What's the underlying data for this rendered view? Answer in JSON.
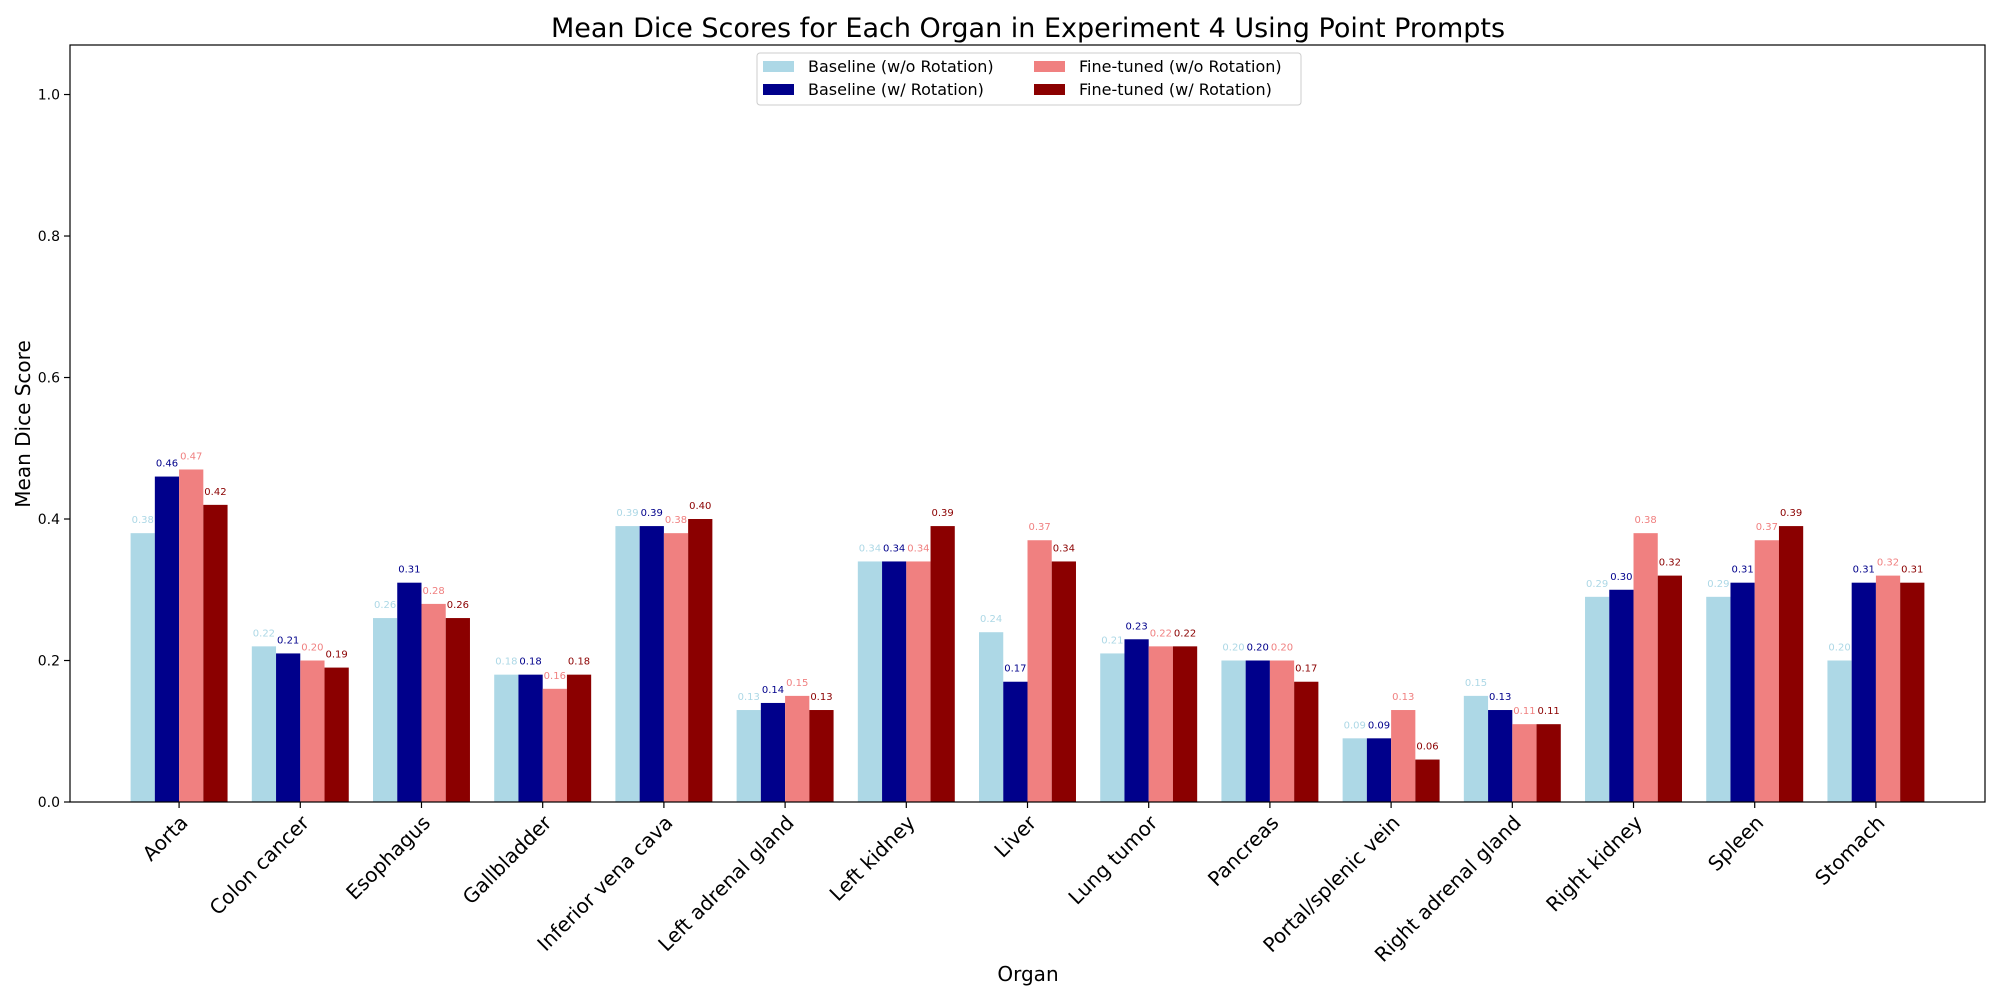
{
  "chart_data": {
    "type": "bar",
    "title": "Mean Dice Scores for Each Organ in Experiment 4 Using Point Prompts",
    "xlabel": "Organ",
    "ylabel": "Mean Dice Score",
    "ylim": [
      0,
      1.07
    ],
    "yticks": [
      "0.0",
      "0.2",
      "0.4",
      "0.6",
      "0.8",
      "1.0"
    ],
    "legend_position": "top-center",
    "categories": [
      "Aorta",
      "Colon cancer",
      "Esophagus",
      "Gallbladder",
      "Inferior vena cava",
      "Left adrenal gland",
      "Left kidney",
      "Liver",
      "Lung tumor",
      "Pancreas",
      "Portal/splenic vein",
      "Right adrenal gland",
      "Right kidney",
      "Spleen",
      "Stomach"
    ],
    "series": [
      {
        "name": "Baseline (w/o Rotation)",
        "color": "#add8e6",
        "values": [
          0.38,
          0.22,
          0.26,
          0.18,
          0.39,
          0.13,
          0.34,
          0.24,
          0.21,
          0.2,
          0.09,
          0.15,
          0.29,
          0.29,
          0.2
        ],
        "labels": [
          "0.38",
          "0.22",
          "0.26",
          "0.18",
          "0.39",
          "0.13",
          "0.34",
          "0.24",
          "0.21",
          "0.20",
          "0.09",
          "0.15",
          "0.29",
          "0.29",
          "0.20"
        ]
      },
      {
        "name": "Baseline (w/ Rotation)",
        "color": "#00008b",
        "values": [
          0.46,
          0.21,
          0.31,
          0.18,
          0.39,
          0.14,
          0.34,
          0.17,
          0.23,
          0.2,
          0.09,
          0.13,
          0.3,
          0.31,
          0.31
        ],
        "labels": [
          "0.46",
          "0.21",
          "0.31",
          "0.18",
          "0.39",
          "0.14",
          "0.34",
          "0.17",
          "0.23",
          "0.20",
          "0.09",
          "0.13",
          "0.30",
          "0.31",
          "0.31"
        ]
      },
      {
        "name": "Fine-tuned (w/o Rotation)",
        "color": "#f08080",
        "values": [
          0.47,
          0.2,
          0.28,
          0.16,
          0.38,
          0.15,
          0.34,
          0.37,
          0.22,
          0.2,
          0.13,
          0.11,
          0.38,
          0.37,
          0.32
        ],
        "labels": [
          "0.47",
          "0.20",
          "0.28",
          "0.16",
          "0.38",
          "0.15",
          "0.34",
          "0.37",
          "0.22",
          "0.20",
          "0.13",
          "0.11",
          "0.38",
          "0.37",
          "0.32"
        ]
      },
      {
        "name": "Fine-tuned (w/ Rotation)",
        "color": "#8b0000",
        "values": [
          0.42,
          0.19,
          0.26,
          0.18,
          0.4,
          0.13,
          0.39,
          0.34,
          0.22,
          0.17,
          0.06,
          0.11,
          0.32,
          0.39,
          0.31
        ],
        "labels": [
          "0.42",
          "0.19",
          "0.26",
          "0.18",
          "0.40",
          "0.13",
          "0.39",
          "0.34",
          "0.22",
          "0.17",
          "0.06",
          "0.11",
          "0.32",
          "0.39",
          "0.31"
        ]
      }
    ]
  }
}
